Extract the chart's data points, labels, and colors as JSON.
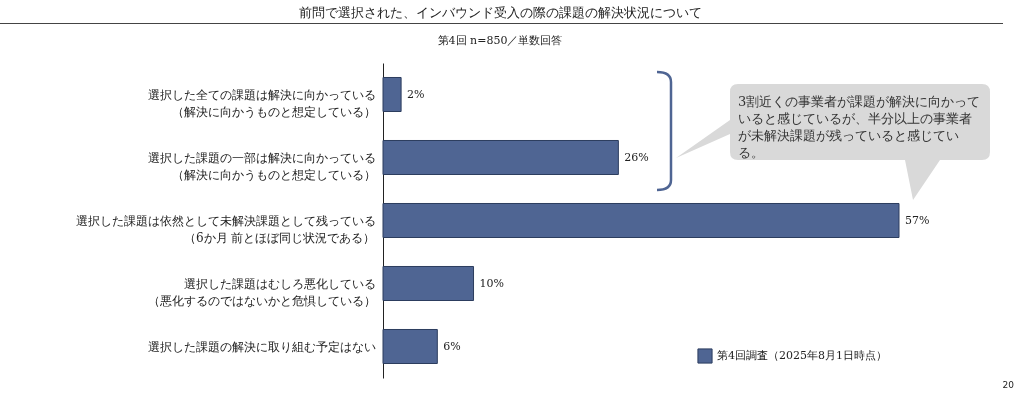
{
  "chart_data": {
    "type": "bar",
    "orientation": "horizontal",
    "title": "前問で選択された、インバウンド受入の際の課題の解決状況について",
    "subtitle": "第4回 n=850／単数回答",
    "categories": [
      "選択した全ての課題は解決に向かっている（解決に向かうものと想定している）",
      "選択した課題の一部は解決に向かっている（解決に向かうものと想定している）",
      "選択した課題は依然として未解決課題として残っている（6か月 前とほぼ同じ状況である）",
      "選択した課題はむしろ悪化している（悪化するのではないかと危惧している）",
      "選択した課題の解決に取り組む予定はない"
    ],
    "series": [
      {
        "name": "第4回調査（2025年8月1日時点）",
        "color": "#4f6593",
        "values": [
          2,
          26,
          57,
          10,
          6
        ],
        "value_labels": [
          "2%",
          "26%",
          "57%",
          "10%",
          "6%"
        ]
      }
    ],
    "legend": "bottom right",
    "annotations": [
      "3割近くの事業者が課題が解決に向かっていると感じているが、半分以上の事業者が未解決課題が残っていると感じている。",
      "20"
    ]
  }
}
